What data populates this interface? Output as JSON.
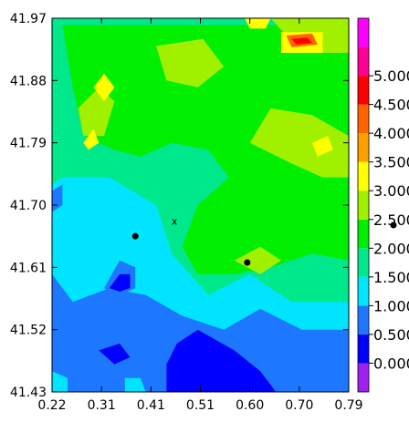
{
  "chart_data": {
    "type": "heatmap",
    "subtype": "filled-contour map",
    "x_ticks": [
      "0.22",
      "0.31",
      "0.41",
      "0.51",
      "0.60",
      "0.70",
      "0.79"
    ],
    "y_ticks": [
      "41.97",
      "41.88",
      "41.79",
      "41.70",
      "41.61",
      "41.52",
      "41.43"
    ],
    "xlim": [
      0.22,
      0.79
    ],
    "ylim": [
      41.43,
      41.97
    ],
    "colorbar": {
      "levels": [
        {
          "min": -0.5,
          "max": 0.0,
          "color": "#a020f0"
        },
        {
          "min": 0.0,
          "max": 0.5,
          "color": "#0000ff"
        },
        {
          "min": 0.5,
          "max": 1.0,
          "color": "#1e78ff"
        },
        {
          "min": 1.0,
          "max": 1.5,
          "color": "#00e4ff"
        },
        {
          "min": 1.5,
          "max": 2.0,
          "color": "#00e88c"
        },
        {
          "min": 2.0,
          "max": 2.5,
          "color": "#00ee00"
        },
        {
          "min": 2.5,
          "max": 3.0,
          "color": "#a0f000"
        },
        {
          "min": 3.0,
          "max": 3.5,
          "color": "#ffff00"
        },
        {
          "min": 3.5,
          "max": 4.0,
          "color": "#ffa000"
        },
        {
          "min": 4.0,
          "max": 4.5,
          "color": "#ff6400"
        },
        {
          "min": 4.5,
          "max": 5.0,
          "color": "#ff0000"
        },
        {
          "min": 5.0,
          "max": 5.5,
          "color": "#ff0096"
        },
        {
          "min": 5.5,
          "max": 6.0,
          "color": "#ff00ff"
        }
      ],
      "tick_labels": [
        "0.000",
        "0.500",
        "1.000",
        "1.500",
        "2.000",
        "2.500",
        "3.000",
        "3.500",
        "4.000",
        "4.500",
        "5.000"
      ],
      "tick_values": [
        0.0,
        0.5,
        1.0,
        1.5,
        2.0,
        2.5,
        3.0,
        3.5,
        4.0,
        4.5,
        5.0
      ],
      "range": [
        -0.5,
        6.0
      ]
    },
    "markers": [
      {
        "label": "",
        "shape": "dot",
        "x": 0.38,
        "y": 41.655
      },
      {
        "label": "",
        "shape": "dot",
        "x": 0.595,
        "y": 41.617
      },
      {
        "label": "x",
        "shape": "text",
        "x": 0.455,
        "y": 41.677
      }
    ],
    "field_regions": [
      {
        "value": 1.25,
        "polygon": [
          [
            0.22,
            41.43
          ],
          [
            0.79,
            41.43
          ],
          [
            0.79,
            41.97
          ],
          [
            0.22,
            41.97
          ]
        ]
      },
      {
        "value": 1.75,
        "polygon": [
          [
            0.22,
            41.97
          ],
          [
            0.79,
            41.97
          ],
          [
            0.79,
            41.56
          ],
          [
            0.68,
            41.56
          ],
          [
            0.6,
            41.6
          ],
          [
            0.52,
            41.57
          ],
          [
            0.45,
            41.63
          ],
          [
            0.42,
            41.7
          ],
          [
            0.33,
            41.74
          ],
          [
            0.24,
            41.74
          ],
          [
            0.22,
            41.73
          ]
        ]
      },
      {
        "value": 2.25,
        "polygon": [
          [
            0.24,
            41.96
          ],
          [
            0.79,
            41.96
          ],
          [
            0.79,
            41.62
          ],
          [
            0.72,
            41.63
          ],
          [
            0.64,
            41.61
          ],
          [
            0.57,
            41.6
          ],
          [
            0.5,
            41.6
          ],
          [
            0.47,
            41.64
          ],
          [
            0.5,
            41.7
          ],
          [
            0.56,
            41.74
          ],
          [
            0.52,
            41.78
          ],
          [
            0.45,
            41.79
          ],
          [
            0.39,
            41.77
          ],
          [
            0.34,
            41.78
          ],
          [
            0.28,
            41.8
          ],
          [
            0.26,
            41.87
          ]
        ]
      },
      {
        "value": 2.75,
        "polygon": [
          [
            0.6,
            41.79
          ],
          [
            0.64,
            41.84
          ],
          [
            0.72,
            41.83
          ],
          [
            0.79,
            41.8
          ],
          [
            0.79,
            41.74
          ],
          [
            0.74,
            41.74
          ],
          [
            0.68,
            41.76
          ]
        ]
      },
      {
        "value": 2.75,
        "polygon": [
          [
            0.42,
            41.93
          ],
          [
            0.51,
            41.94
          ],
          [
            0.55,
            41.9
          ],
          [
            0.5,
            41.87
          ],
          [
            0.44,
            41.88
          ]
        ]
      },
      {
        "value": 2.75,
        "polygon": [
          [
            0.27,
            41.84
          ],
          [
            0.31,
            41.87
          ],
          [
            0.34,
            41.85
          ],
          [
            0.32,
            41.8
          ],
          [
            0.28,
            41.8
          ]
        ]
      },
      {
        "value": 2.75,
        "polygon": [
          [
            0.57,
            41.62
          ],
          [
            0.62,
            41.64
          ],
          [
            0.66,
            41.62
          ],
          [
            0.62,
            41.6
          ]
        ]
      },
      {
        "value": 2.75,
        "polygon": [
          [
            0.64,
            41.97
          ],
          [
            0.79,
            41.97
          ],
          [
            0.79,
            41.92
          ],
          [
            0.7,
            41.92
          ]
        ]
      },
      {
        "value": 3.25,
        "polygon": [
          [
            0.3,
            41.87
          ],
          [
            0.32,
            41.89
          ],
          [
            0.34,
            41.87
          ],
          [
            0.32,
            41.85
          ]
        ]
      },
      {
        "value": 3.25,
        "polygon": [
          [
            0.28,
            41.79
          ],
          [
            0.3,
            41.81
          ],
          [
            0.31,
            41.79
          ],
          [
            0.29,
            41.78
          ]
        ]
      },
      {
        "value": 3.25,
        "polygon": [
          [
            0.72,
            41.79
          ],
          [
            0.75,
            41.8
          ],
          [
            0.76,
            41.78
          ],
          [
            0.73,
            41.77
          ]
        ]
      },
      {
        "value": 3.25,
        "polygon": [
          [
            0.59,
            41.97
          ],
          [
            0.64,
            41.97
          ],
          [
            0.63,
            41.955
          ],
          [
            0.6,
            41.955
          ]
        ]
      },
      {
        "value": 3.25,
        "polygon": [
          [
            0.66,
            41.95
          ],
          [
            0.74,
            41.95
          ],
          [
            0.74,
            41.92
          ],
          [
            0.66,
            41.92
          ]
        ]
      },
      {
        "value": 4.25,
        "polygon": [
          [
            0.67,
            41.945
          ],
          [
            0.72,
            41.948
          ],
          [
            0.73,
            41.932
          ],
          [
            0.68,
            41.928
          ]
        ]
      },
      {
        "value": 4.75,
        "polygon": [
          [
            0.68,
            41.94
          ],
          [
            0.71,
            41.942
          ],
          [
            0.72,
            41.934
          ],
          [
            0.69,
            41.932
          ]
        ]
      },
      {
        "value": 0.75,
        "polygon": [
          [
            0.22,
            41.43
          ],
          [
            0.79,
            41.43
          ],
          [
            0.79,
            41.52
          ],
          [
            0.7,
            41.52
          ],
          [
            0.62,
            41.55
          ],
          [
            0.55,
            41.52
          ],
          [
            0.47,
            41.54
          ],
          [
            0.4,
            41.57
          ],
          [
            0.33,
            41.58
          ],
          [
            0.26,
            41.56
          ],
          [
            0.22,
            41.6
          ]
        ]
      },
      {
        "value": 0.75,
        "polygon": [
          [
            0.32,
            41.58
          ],
          [
            0.35,
            41.62
          ],
          [
            0.38,
            41.61
          ],
          [
            0.38,
            41.58
          ],
          [
            0.35,
            41.57
          ]
        ]
      },
      {
        "value": 0.75,
        "polygon": [
          [
            0.22,
            41.72
          ],
          [
            0.24,
            41.73
          ],
          [
            0.24,
            41.7
          ],
          [
            0.22,
            41.69
          ]
        ]
      },
      {
        "value": 0.25,
        "polygon": [
          [
            0.33,
            41.58
          ],
          [
            0.35,
            41.6
          ],
          [
            0.37,
            41.6
          ],
          [
            0.37,
            41.58
          ],
          [
            0.35,
            41.575
          ]
        ]
      },
      {
        "value": 0.25,
        "polygon": [
          [
            0.31,
            41.49
          ],
          [
            0.35,
            41.5
          ],
          [
            0.37,
            41.48
          ],
          [
            0.34,
            41.47
          ]
        ]
      },
      {
        "value": 0.25,
        "polygon": [
          [
            0.44,
            41.43
          ],
          [
            0.65,
            41.43
          ],
          [
            0.62,
            41.46
          ],
          [
            0.57,
            41.49
          ],
          [
            0.5,
            41.52
          ],
          [
            0.46,
            41.5
          ],
          [
            0.44,
            41.47
          ]
        ]
      },
      {
        "value": 1.25,
        "polygon": [
          [
            0.22,
            41.43
          ],
          [
            0.25,
            41.43
          ],
          [
            0.25,
            41.45
          ],
          [
            0.22,
            41.46
          ]
        ]
      },
      {
        "value": 1.25,
        "polygon": [
          [
            0.36,
            41.43
          ],
          [
            0.4,
            41.43
          ],
          [
            0.39,
            41.45
          ],
          [
            0.36,
            41.45
          ]
        ]
      }
    ]
  }
}
